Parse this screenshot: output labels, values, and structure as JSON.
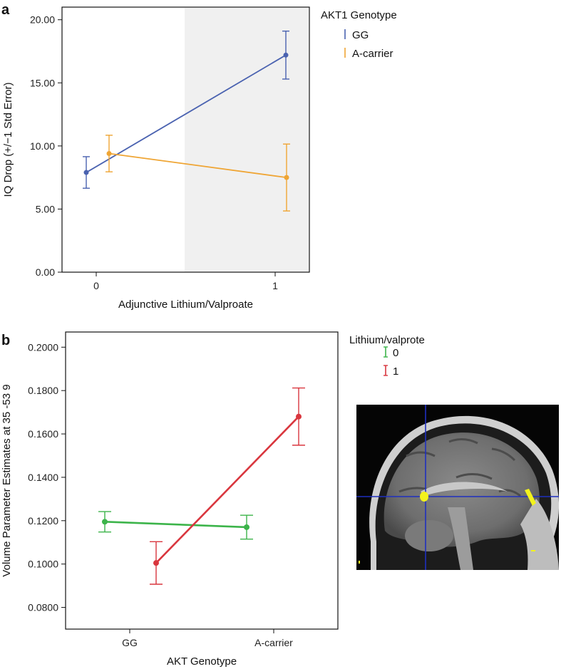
{
  "panels": {
    "a_label": "a",
    "b_label": "b"
  },
  "chart_data": [
    {
      "type": "line",
      "panel": "a",
      "title": "",
      "xlabel": "Adjunctive Lithium/Valproate",
      "ylabel": "IQ Drop (+/−1 Std Error)",
      "categories": [
        "0",
        "1"
      ],
      "ylim": [
        0,
        21
      ],
      "yticks": [
        "0.00",
        "5.00",
        "10.00",
        "15.00",
        "20.00"
      ],
      "shaded_region": "category 1",
      "legend_title": "AKT1 Genotype",
      "legend_position": "right",
      "series": [
        {
          "name": "GG",
          "color": "#4a62b0",
          "values": [
            7.9,
            17.2
          ],
          "errors": [
            1.25,
            1.9
          ]
        },
        {
          "name": "A-carrier",
          "color": "#efa534",
          "values": [
            9.4,
            7.5
          ],
          "errors": [
            1.45,
            2.65
          ]
        }
      ]
    },
    {
      "type": "line",
      "panel": "b",
      "title": "",
      "xlabel": "AKT Genotype",
      "ylabel": "Volume Parameter Estimates at 35 -53 9",
      "categories": [
        "GG",
        "A-carrier"
      ],
      "ylim": [
        0.07,
        0.207
      ],
      "yticks": [
        "0.0800",
        "0.1000",
        "0.1200",
        "0.1400",
        "0.1600",
        "0.1800",
        "0.2000"
      ],
      "legend_title": "Lithium/valprote",
      "legend_position": "right",
      "series": [
        {
          "name": "0",
          "color": "#3cb44a",
          "values": [
            0.1195,
            0.117
          ],
          "errors": [
            0.0047,
            0.0055
          ]
        },
        {
          "name": "1",
          "color": "#d9363e",
          "values": [
            0.1005,
            0.168
          ],
          "errors": [
            0.0098,
            0.0132
          ]
        }
      ]
    }
  ],
  "inset": {
    "description_icon": "brain-mri-sagittal-icon",
    "crosshair_color": "#1f2fbf",
    "highlight_color": "#f3f31c"
  }
}
